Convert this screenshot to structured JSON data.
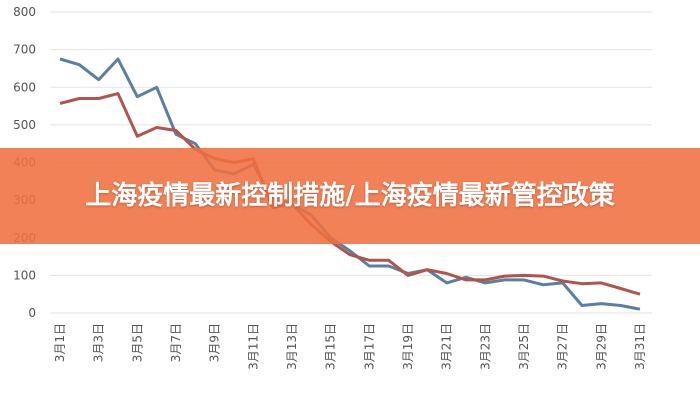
{
  "chart_data": {
    "type": "line",
    "title": "上海疫情最新控制措施/上海疫情最新管控政策",
    "categories": [
      "3月1日",
      null,
      "3月3日",
      null,
      "3月5日",
      null,
      "3月7日",
      null,
      "3月9日",
      null,
      "3月11日",
      null,
      "3月13日",
      null,
      "3月15日",
      null,
      "3月17日",
      null,
      "3月19日",
      null,
      "3月21日",
      null,
      "3月23日",
      null,
      "3月25日",
      null,
      "3月27日",
      null,
      "3月29日",
      null,
      "3月31日"
    ],
    "series": [
      {
        "color": "#5b7fa3",
        "values": [
          675,
          660,
          620,
          675,
          575,
          600,
          475,
          450,
          380,
          370,
          395,
          300,
          290,
          260,
          200,
          165,
          125,
          125,
          105,
          115,
          80,
          95,
          80,
          88,
          88,
          75,
          80,
          20,
          25,
          20,
          10
        ]
      },
      {
        "color": "#b1544c",
        "values": [
          557,
          570,
          570,
          583,
          470,
          493,
          485,
          435,
          410,
          400,
          410,
          280,
          290,
          235,
          190,
          155,
          140,
          140,
          100,
          115,
          105,
          88,
          88,
          98,
          100,
          98,
          85,
          78,
          80,
          65,
          50
        ]
      }
    ],
    "ylim": [
      0,
      800
    ],
    "yticks": [
      0,
      100,
      200,
      300,
      400,
      500,
      600,
      700,
      800
    ],
    "grid": true
  }
}
